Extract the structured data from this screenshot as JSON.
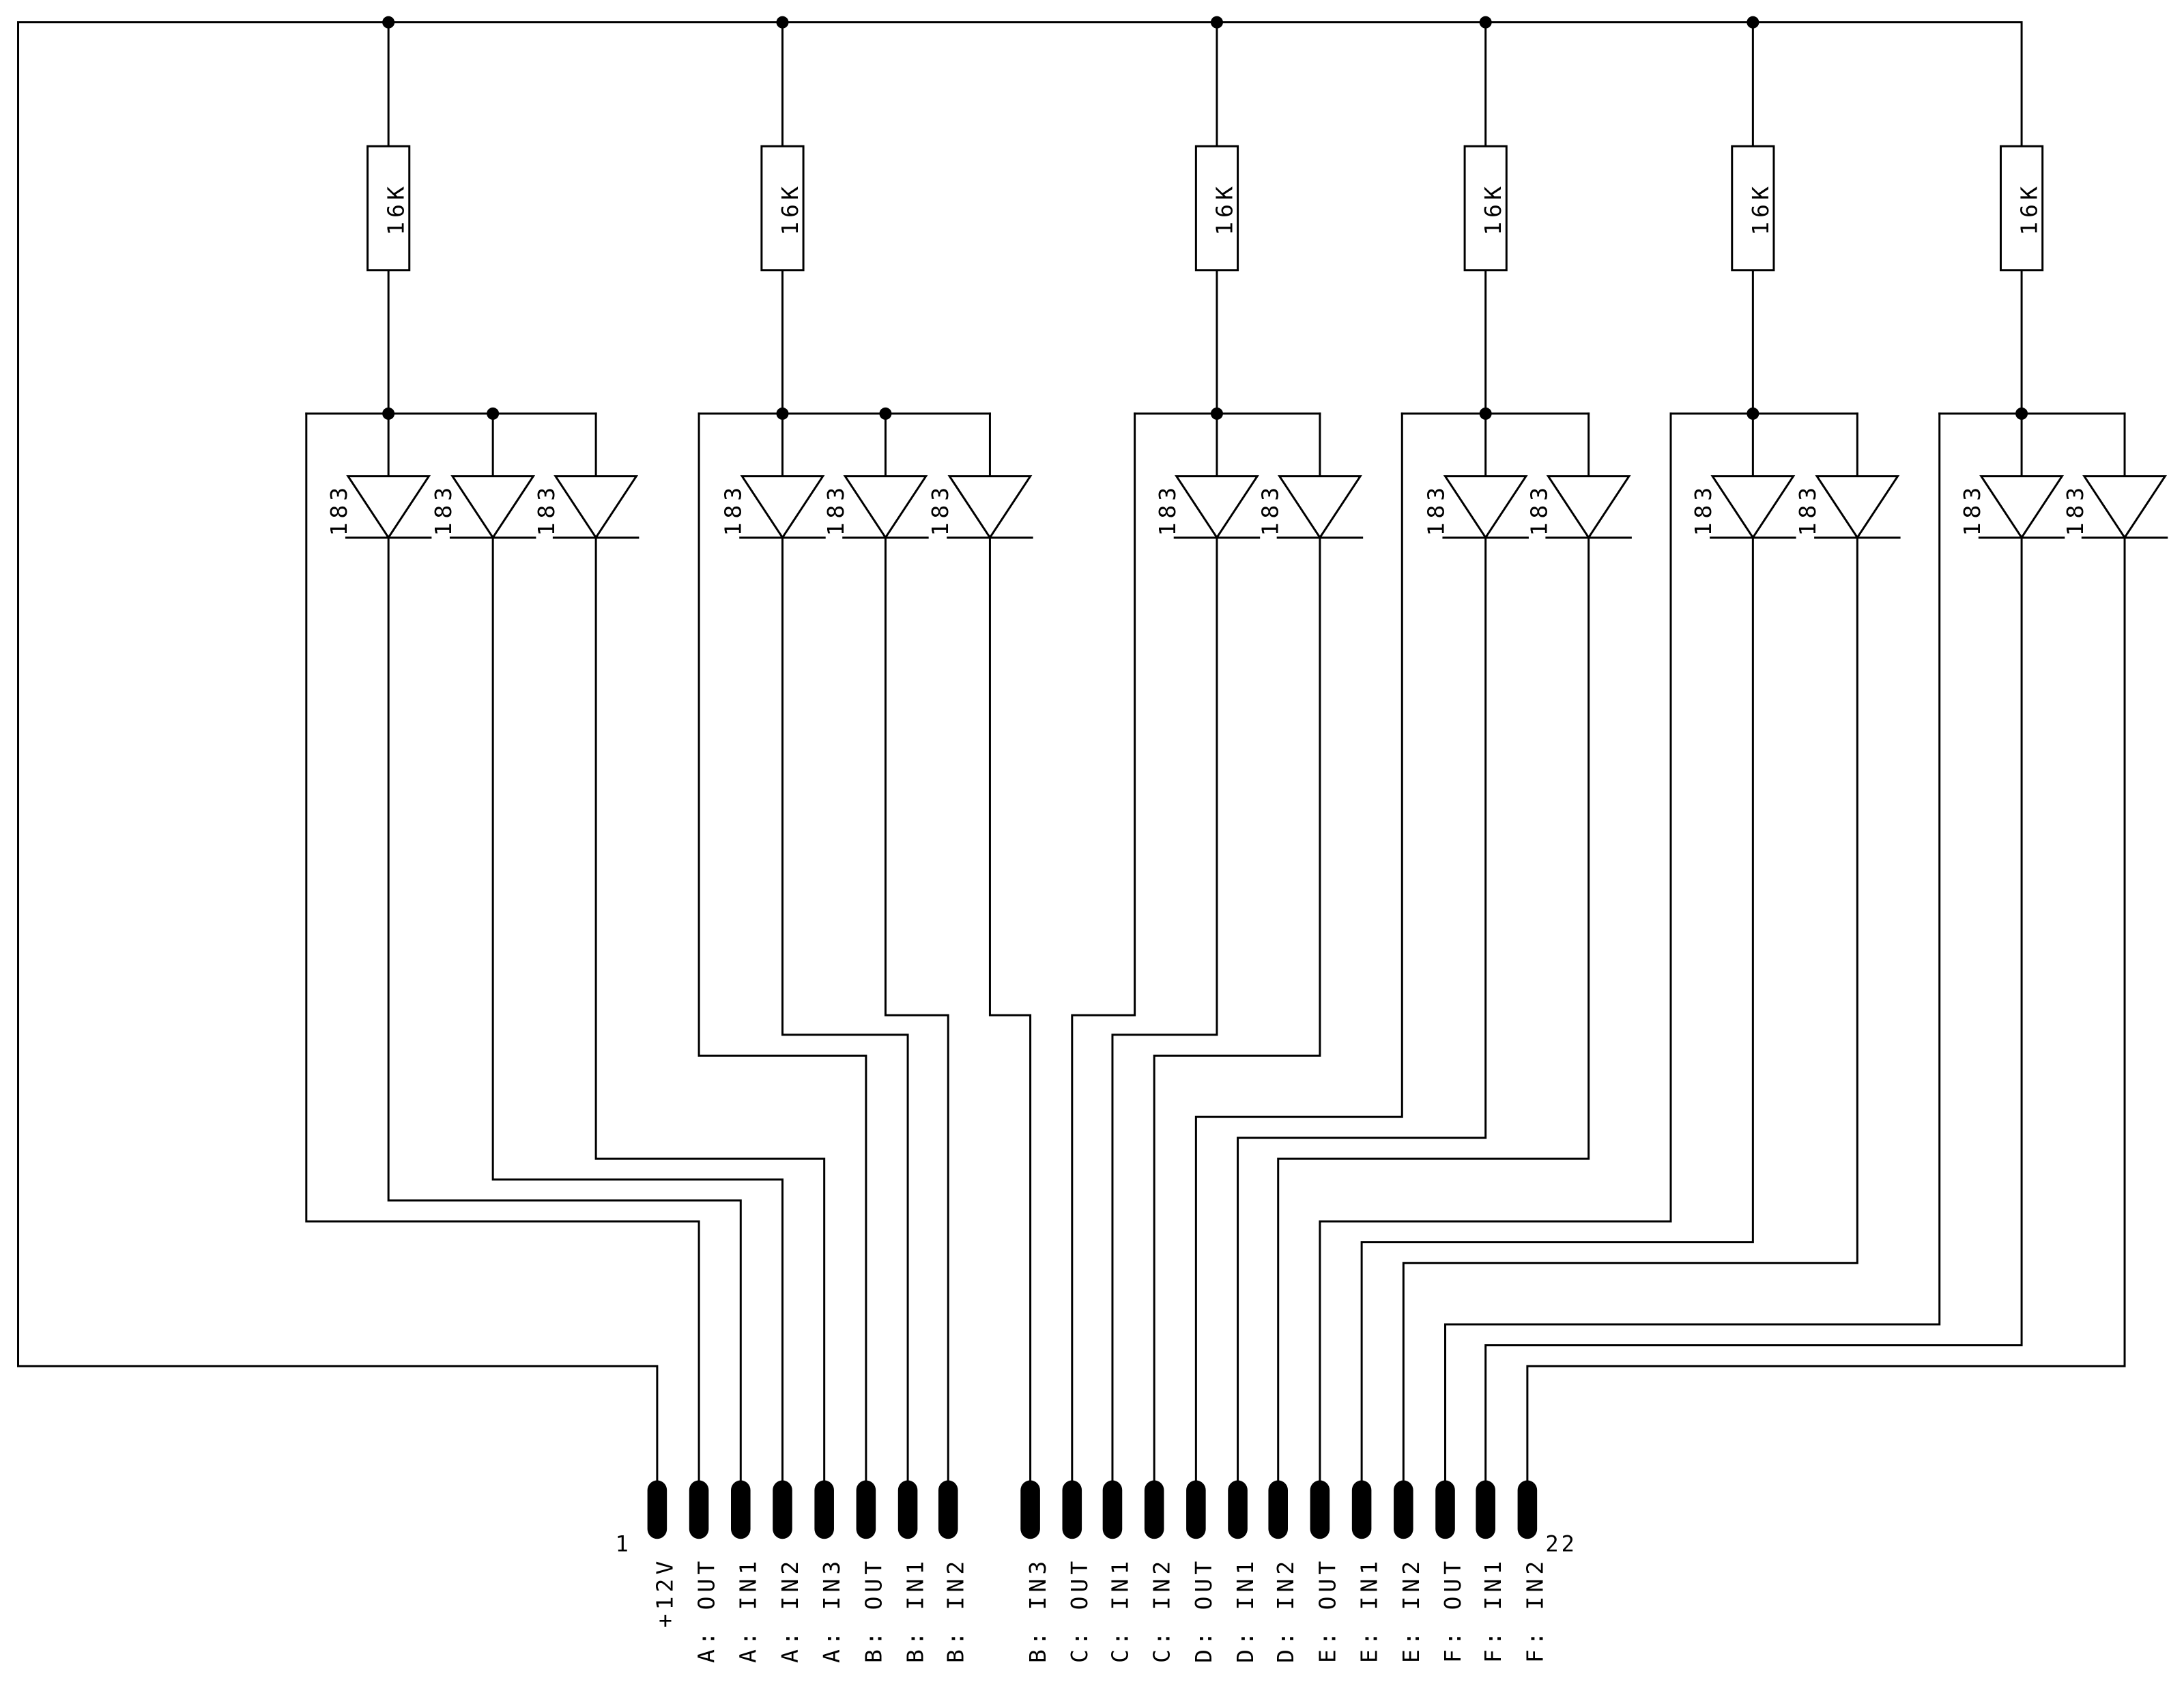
{
  "resistor_value": "16K",
  "diode_part": "183",
  "connector": {
    "first_pin": "1",
    "last_pin": "22",
    "pins": [
      "+12V",
      "A: OUT",
      "A: IN1",
      "A: IN2",
      "A: IN3",
      "B: OUT",
      "B: IN1",
      "B: IN2",
      "B: IN3",
      "C: OUT",
      "C: IN1",
      "C: IN2",
      "D: OUT",
      "D: IN1",
      "D: IN2",
      "E: OUT",
      "E: IN1",
      "E: IN2",
      "F: OUT",
      "F: IN1",
      "F: IN2"
    ]
  },
  "colors": {
    "ink": "#000000",
    "paper": "#ffffff"
  }
}
